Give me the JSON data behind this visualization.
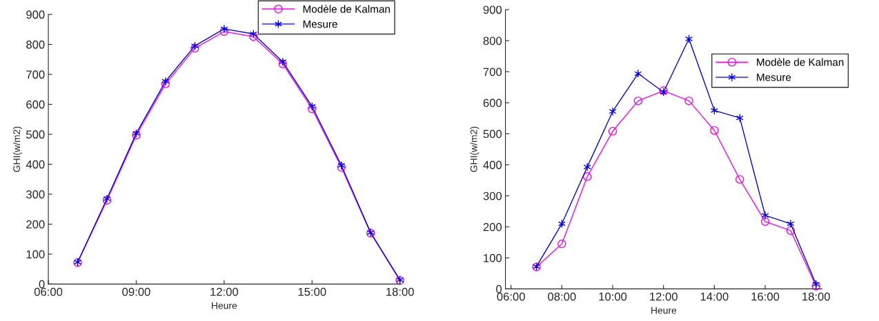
{
  "chart_data": [
    {
      "type": "line",
      "xlabel": "Heure",
      "ylabel": "GHI(w/m2)",
      "x": [
        7,
        8,
        9,
        10,
        11,
        12,
        13,
        14,
        15,
        16,
        17,
        18
      ],
      "series": [
        {
          "name": "Modèle de Kalman",
          "color": "#ff00ff",
          "marker": "circle",
          "values": [
            72,
            280,
            497,
            668,
            787,
            843,
            826,
            735,
            585,
            390,
            170,
            12
          ]
        },
        {
          "name": "Mesure",
          "color": "#0000ff",
          "marker": "cross",
          "values": [
            73,
            285,
            503,
            677,
            795,
            852,
            835,
            742,
            593,
            396,
            172,
            14
          ]
        }
      ],
      "xlim": [
        6,
        18
      ],
      "xticks": [
        {
          "value": 6,
          "label": "06:00"
        },
        {
          "value": 9,
          "label": "09:00"
        },
        {
          "value": 12,
          "label": "12:00"
        },
        {
          "value": 15,
          "label": "15:00"
        },
        {
          "value": 18,
          "label": "18:00"
        }
      ],
      "ylim": [
        0,
        900
      ],
      "yticks": [
        0,
        100,
        200,
        300,
        400,
        500,
        600,
        700,
        800,
        900
      ],
      "grid": false,
      "legend": "top right"
    },
    {
      "type": "line",
      "xlabel": "Heure",
      "ylabel": "GHI(w/m2)",
      "x": [
        7,
        8,
        9,
        10,
        11,
        12,
        13,
        14,
        15,
        16,
        17,
        18
      ],
      "series": [
        {
          "name": "Modèle de Kalman",
          "color": "#ff00ff",
          "marker": "circle",
          "values": [
            71,
            145,
            362,
            508,
            606,
            639,
            606,
            511,
            353,
            217,
            188,
            9
          ]
        },
        {
          "name": "Mesure",
          "color": "#0000ff",
          "marker": "cross",
          "values": [
            72,
            210,
            393,
            572,
            694,
            634,
            806,
            575,
            551,
            237,
            210,
            15
          ]
        }
      ],
      "xlim": [
        5.78,
        18.23
      ],
      "xticks": [
        {
          "value": 6,
          "label": "06:00"
        },
        {
          "value": 8,
          "label": "08:00"
        },
        {
          "value": 10,
          "label": "10:00"
        },
        {
          "value": 12,
          "label": "12:00"
        },
        {
          "value": 14,
          "label": "14:00"
        },
        {
          "value": 16,
          "label": "16:00"
        },
        {
          "value": 18,
          "label": "18:00"
        }
      ],
      "ylim": [
        0,
        900
      ],
      "yticks": [
        0,
        100,
        200,
        300,
        400,
        500,
        600,
        700,
        800,
        900
      ],
      "grid": false,
      "legend": "top right"
    }
  ]
}
